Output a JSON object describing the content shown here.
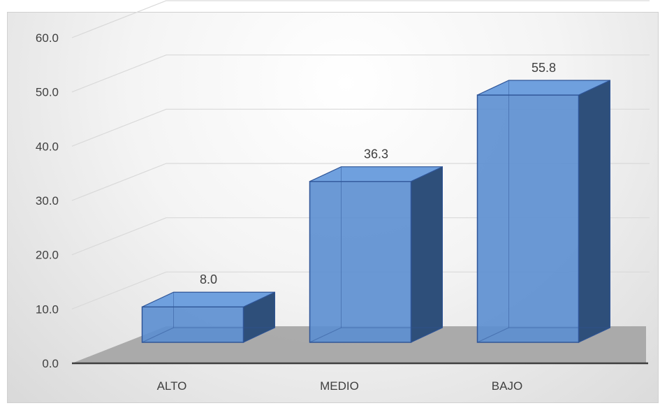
{
  "chart_data": {
    "type": "bar",
    "categories": [
      "ALTO",
      "MEDIO",
      "BAJO"
    ],
    "values": [
      8.0,
      36.3,
      55.8
    ],
    "data_labels": [
      "8.0",
      "36.3",
      "55.8"
    ],
    "title": "",
    "xlabel": "",
    "ylabel": "",
    "ylim": [
      0,
      60
    ],
    "yticks": [
      "0.0",
      "10.0",
      "20.0",
      "30.0",
      "40.0",
      "50.0",
      "60.0"
    ],
    "grid": true,
    "legend": "none",
    "three_d": true,
    "colors": {
      "bar_front": "#5b8ed0",
      "bar_top": "#6fa0de",
      "bar_side": "#2e4f7a",
      "bar_edge": "#2f5597",
      "floor": "#a6a6a6",
      "grid": "#d9d9d9",
      "axis": "#404040"
    }
  }
}
